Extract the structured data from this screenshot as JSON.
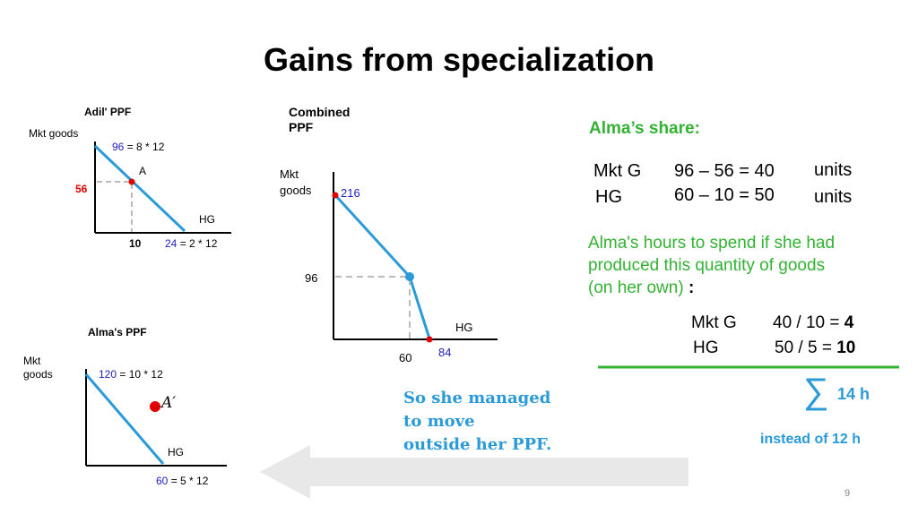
{
  "title": "Gains from specialization",
  "colors": {
    "line": "#2a9ad8",
    "point": "#e00000",
    "green_text": "#33b233",
    "blue_text": "#2222bb",
    "arrow": "#e8e8e8"
  },
  "adil_ppf": {
    "title": "Adil' PPF",
    "y_axis_label": "Mkt goods",
    "x_axis_label": "HG",
    "y_intercept_value": "96",
    "y_intercept_formula": " = 8 * 12",
    "x_intercept_value": "24",
    "x_intercept_formula": " = 2 * 12",
    "point_label": "A",
    "point_y": "56",
    "point_x": "10"
  },
  "combined_ppf": {
    "title_line1": "Combined",
    "title_line2": "PPF",
    "y_axis_label_line1": "Mkt",
    "y_axis_label_line2": "goods",
    "x_axis_label": "HG",
    "y_intercept": "216",
    "kink_y": "96",
    "kink_x": "60",
    "x_intercept": "84"
  },
  "alma_ppf": {
    "title": "Alma's PPF",
    "y_axis_label_line1": "Mkt",
    "y_axis_label_line2": "goods",
    "x_axis_label": "HG",
    "y_intercept_value": "120",
    "y_intercept_formula": " = 10 * 12",
    "x_intercept_value": "60",
    "x_intercept_formula": " = 5 * 12",
    "point_label": "A′"
  },
  "alma_share": {
    "heading": "Alma’s share:",
    "rows": [
      {
        "label": "Mkt G",
        "calc": "96 – 56 = 40",
        "unit": "units"
      },
      {
        "label": "HG",
        "calc": "60 – 10 = 50",
        "unit": "units"
      }
    ]
  },
  "hours_text": {
    "line1": "Alma's hours to spend if she had",
    "line2": "produced this quantity of goods",
    "line3": "(on her own) ",
    "colon": ":"
  },
  "hours_rows": [
    {
      "label": "Mkt G",
      "calc": "40 / 10 = ",
      "result": "4"
    },
    {
      "label": "HG",
      "calc": "50 / 5  = ",
      "result": "10"
    }
  ],
  "sum_symbol": "∑",
  "total": "14 h",
  "instead": "instead of 12 h",
  "conclusion": {
    "line1": "So she managed",
    "line2": "to move",
    "line3": "outside her PPF."
  },
  "page_number": "9"
}
